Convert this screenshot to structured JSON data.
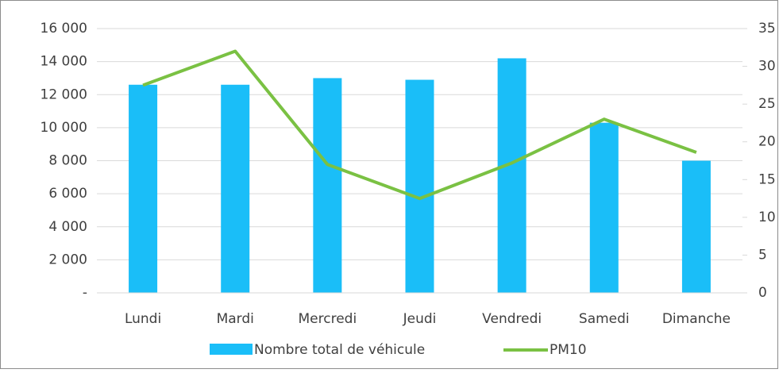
{
  "chart_data": {
    "type": "bar-line",
    "categories": [
      "Lundi",
      "Mardi",
      "Mercredi",
      "Jeudi",
      "Vendredi",
      "Samedi",
      "Dimanche"
    ],
    "series": [
      {
        "name": "Nombre total de véhicule",
        "type": "bar",
        "color": "#1abef8",
        "values": [
          12600,
          12600,
          13000,
          12900,
          14200,
          10300,
          8000
        ]
      },
      {
        "name": "PM10",
        "type": "line",
        "axis": "y2",
        "color": "#7ac143",
        "values": [
          27.5,
          32,
          17,
          12.5,
          17.2,
          23,
          18.6
        ]
      }
    ],
    "ylim": [
      0,
      16000
    ],
    "yticks": [
      {
        "value": 0,
        "label": "-"
      },
      {
        "value": 2000,
        "label": "2 000"
      },
      {
        "value": 4000,
        "label": "4 000"
      },
      {
        "value": 6000,
        "label": "6 000"
      },
      {
        "value": 8000,
        "label": "8 000"
      },
      {
        "value": 10000,
        "label": "10 000"
      },
      {
        "value": 12000,
        "label": "12 000"
      },
      {
        "value": 14000,
        "label": "14 000"
      },
      {
        "value": 16000,
        "label": "16 000"
      }
    ],
    "y2lim": [
      0,
      35
    ],
    "y2ticks": [
      0,
      5,
      10,
      15,
      20,
      25,
      30,
      35
    ],
    "grid": true,
    "legend": "bottom"
  }
}
